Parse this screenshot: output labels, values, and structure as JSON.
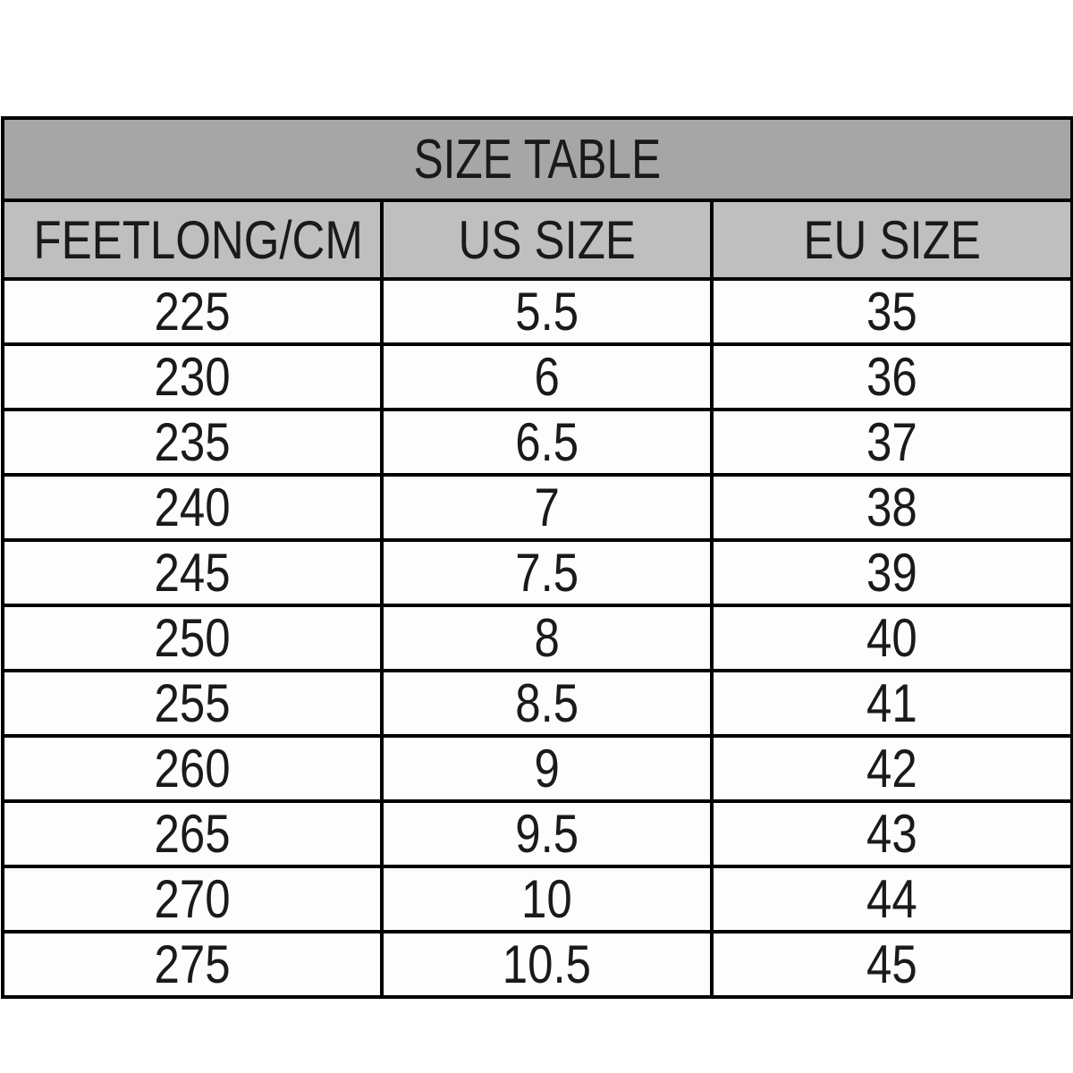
{
  "colors": {
    "page_bg": "#ffffff",
    "title_bg": "#a6a6a6",
    "header_bg": "#bfbfbf",
    "cell_bg": "#fdfdfd",
    "border": "#000000",
    "text": "#1a1a1a"
  },
  "chart_data": {
    "type": "table",
    "title": "SIZE TABLE",
    "columns": [
      "FEETLONG/CM",
      "US SIZE",
      "EU SIZE"
    ],
    "rows": [
      [
        "225",
        "5.5",
        "35"
      ],
      [
        "230",
        "6",
        "36"
      ],
      [
        "235",
        "6.5",
        "37"
      ],
      [
        "240",
        "7",
        "38"
      ],
      [
        "245",
        "7.5",
        "39"
      ],
      [
        "250",
        "8",
        "40"
      ],
      [
        "255",
        "8.5",
        "41"
      ],
      [
        "260",
        "9",
        "42"
      ],
      [
        "265",
        "9.5",
        "43"
      ],
      [
        "270",
        "10",
        "44"
      ],
      [
        "275",
        "10.5",
        "45"
      ]
    ],
    "layout": {
      "legend": "none",
      "grid": "full-black-borders",
      "title_row_span": 3
    }
  }
}
